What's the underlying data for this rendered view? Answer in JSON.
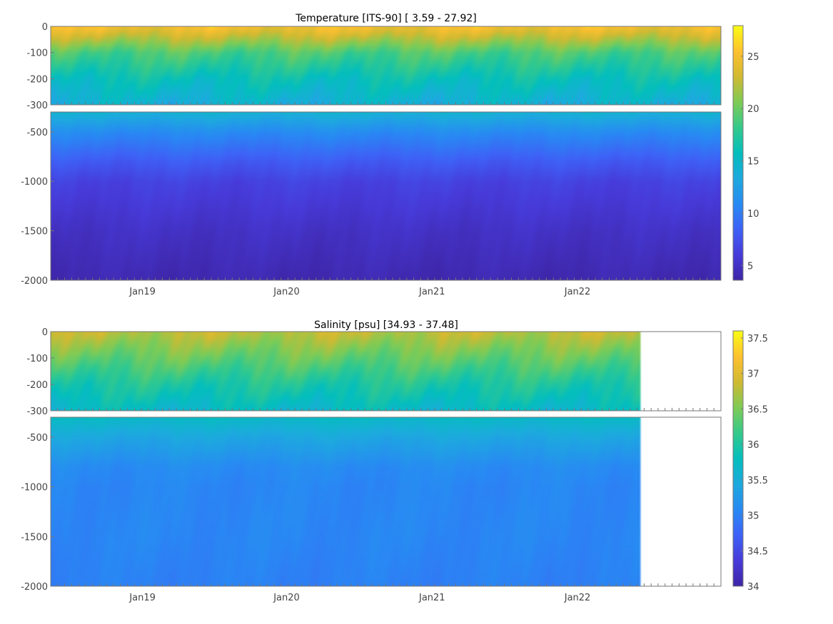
{
  "chart_data": [
    {
      "type": "heatmap",
      "title": "Temperature [ITS-90]   [ 3.59 - 27.92]",
      "variable": "Temperature",
      "units": "ITS-90",
      "range": [
        3.59,
        27.92
      ],
      "colormap": "parula",
      "panels": [
        {
          "name": "upper",
          "ylim": [
            -300,
            0
          ],
          "yticks": [
            0,
            -100,
            -200,
            -300
          ],
          "ytick_labels": [
            "0",
            "-100",
            "-200",
            "-300"
          ]
        },
        {
          "name": "lower",
          "ylim": [
            -2000,
            -300
          ],
          "yticks": [
            -500,
            -1000,
            -1500,
            -2000
          ],
          "ytick_labels": [
            "-500",
            "-1000",
            "-1500",
            "-2000"
          ]
        }
      ],
      "x_tick_labels": [
        "Jan19",
        "Jan20",
        "Jan21",
        "Jan22"
      ],
      "colorbar": {
        "min": 3.59,
        "max": 27.92,
        "ticks": [
          5,
          10,
          15,
          20,
          25
        ],
        "tick_labels": [
          "5",
          "10",
          "15",
          "20",
          "25"
        ]
      },
      "data_end_fraction": 1.0,
      "surface_ranges": [
        18,
        27.5
      ],
      "depth_profile": [
        {
          "depth": 0,
          "value": 25
        },
        {
          "depth": -100,
          "value": 19
        },
        {
          "depth": -200,
          "value": 16
        },
        {
          "depth": -300,
          "value": 14
        },
        {
          "depth": -500,
          "value": 11
        },
        {
          "depth": -800,
          "value": 8
        },
        {
          "depth": -1000,
          "value": 6.5
        },
        {
          "depth": -1500,
          "value": 5
        },
        {
          "depth": -2000,
          "value": 4
        }
      ]
    },
    {
      "type": "heatmap",
      "title": "Salinity [psu]   [34.93 - 37.48]",
      "variable": "Salinity",
      "units": "psu",
      "range": [
        34.93,
        37.48
      ],
      "colormap": "parula",
      "panels": [
        {
          "name": "upper",
          "ylim": [
            -300,
            0
          ],
          "yticks": [
            0,
            -100,
            -200,
            -300
          ],
          "ytick_labels": [
            "0",
            "-100",
            "-200",
            "-300"
          ]
        },
        {
          "name": "lower",
          "ylim": [
            -2000,
            -300
          ],
          "yticks": [
            -500,
            -1000,
            -1500,
            -2000
          ],
          "ytick_labels": [
            "-500",
            "-1000",
            "-1500",
            "-2000"
          ]
        }
      ],
      "x_tick_labels": [
        "Jan19",
        "Jan20",
        "Jan21",
        "Jan22"
      ],
      "colorbar": {
        "min": 34.0,
        "max": 37.6,
        "ticks": [
          34,
          34.5,
          35,
          35.5,
          36,
          36.5,
          37,
          37.5
        ],
        "tick_labels": [
          "34",
          "34.5",
          "35",
          "35.5",
          "36",
          "36.5",
          "37",
          "37.5"
        ]
      },
      "data_end_fraction": 0.88,
      "depth_profile": [
        {
          "depth": 0,
          "value": 36.8
        },
        {
          "depth": -100,
          "value": 36.4
        },
        {
          "depth": -200,
          "value": 36.0
        },
        {
          "depth": -300,
          "value": 35.7
        },
        {
          "depth": -500,
          "value": 35.4
        },
        {
          "depth": -800,
          "value": 35.1
        },
        {
          "depth": -1000,
          "value": 35.05
        },
        {
          "depth": -1500,
          "value": 35.05
        },
        {
          "depth": -2000,
          "value": 35.0
        }
      ]
    }
  ]
}
